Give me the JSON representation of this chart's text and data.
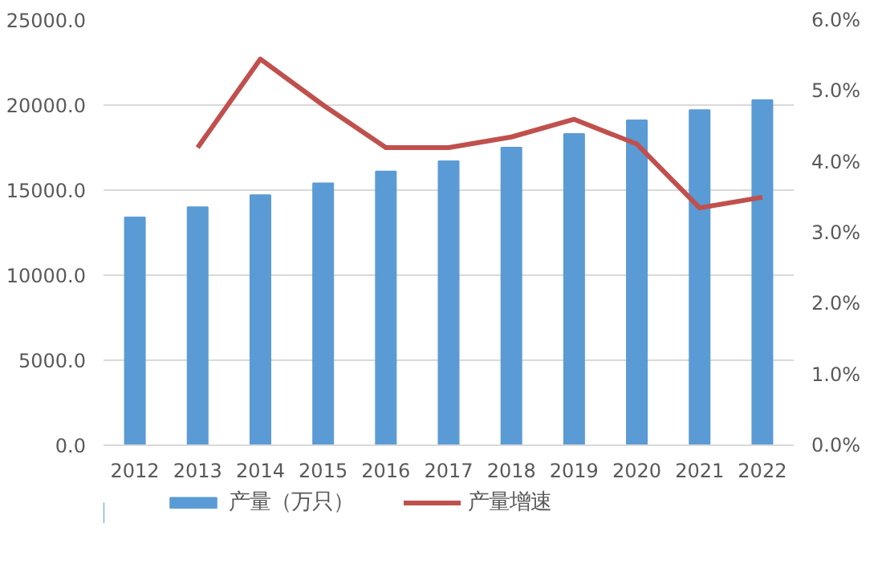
{
  "chart_data": {
    "type": "bar",
    "categories": [
      "2012",
      "2013",
      "2014",
      "2015",
      "2016",
      "2017",
      "2018",
      "2019",
      "2020",
      "2021",
      "2022"
    ],
    "series": [
      {
        "name": "产量（万只）",
        "color": "#5b9bd5",
        "values": [
          13400,
          14000,
          14700,
          15400,
          16100,
          16700,
          17500,
          18300,
          19100,
          19700,
          20300
        ]
      },
      {
        "name": "产量增速",
        "type": "line",
        "axis": "y2",
        "color": "#c0504d",
        "values": [
          null,
          4.2,
          5.45,
          4.8,
          4.2,
          4.2,
          4.35,
          4.6,
          4.25,
          3.35,
          3.5
        ]
      }
    ],
    "ylim": [
      0,
      25000
    ],
    "yticks": [
      {
        "value": 0,
        "label": "0.0"
      },
      {
        "value": 5000,
        "label": "5000.0"
      },
      {
        "value": 10000,
        "label": "10000.0"
      },
      {
        "value": 15000,
        "label": "15000.0"
      },
      {
        "value": 20000,
        "label": "20000.0"
      },
      {
        "value": 25000,
        "label": "25000.0"
      }
    ],
    "y2lim": [
      0,
      6
    ],
    "y2ticks": [
      {
        "value": 0,
        "label": "0.0%"
      },
      {
        "value": 1,
        "label": "1.0%"
      },
      {
        "value": 2,
        "label": "2.0%"
      },
      {
        "value": 3,
        "label": "3.0%"
      },
      {
        "value": 4,
        "label": "4.0%"
      },
      {
        "value": 5,
        "label": "5.0%"
      },
      {
        "value": 6,
        "label": "6.0%"
      }
    ],
    "grid": "y",
    "legend": "bottom",
    "line_style": "solid",
    "marker": "none"
  }
}
